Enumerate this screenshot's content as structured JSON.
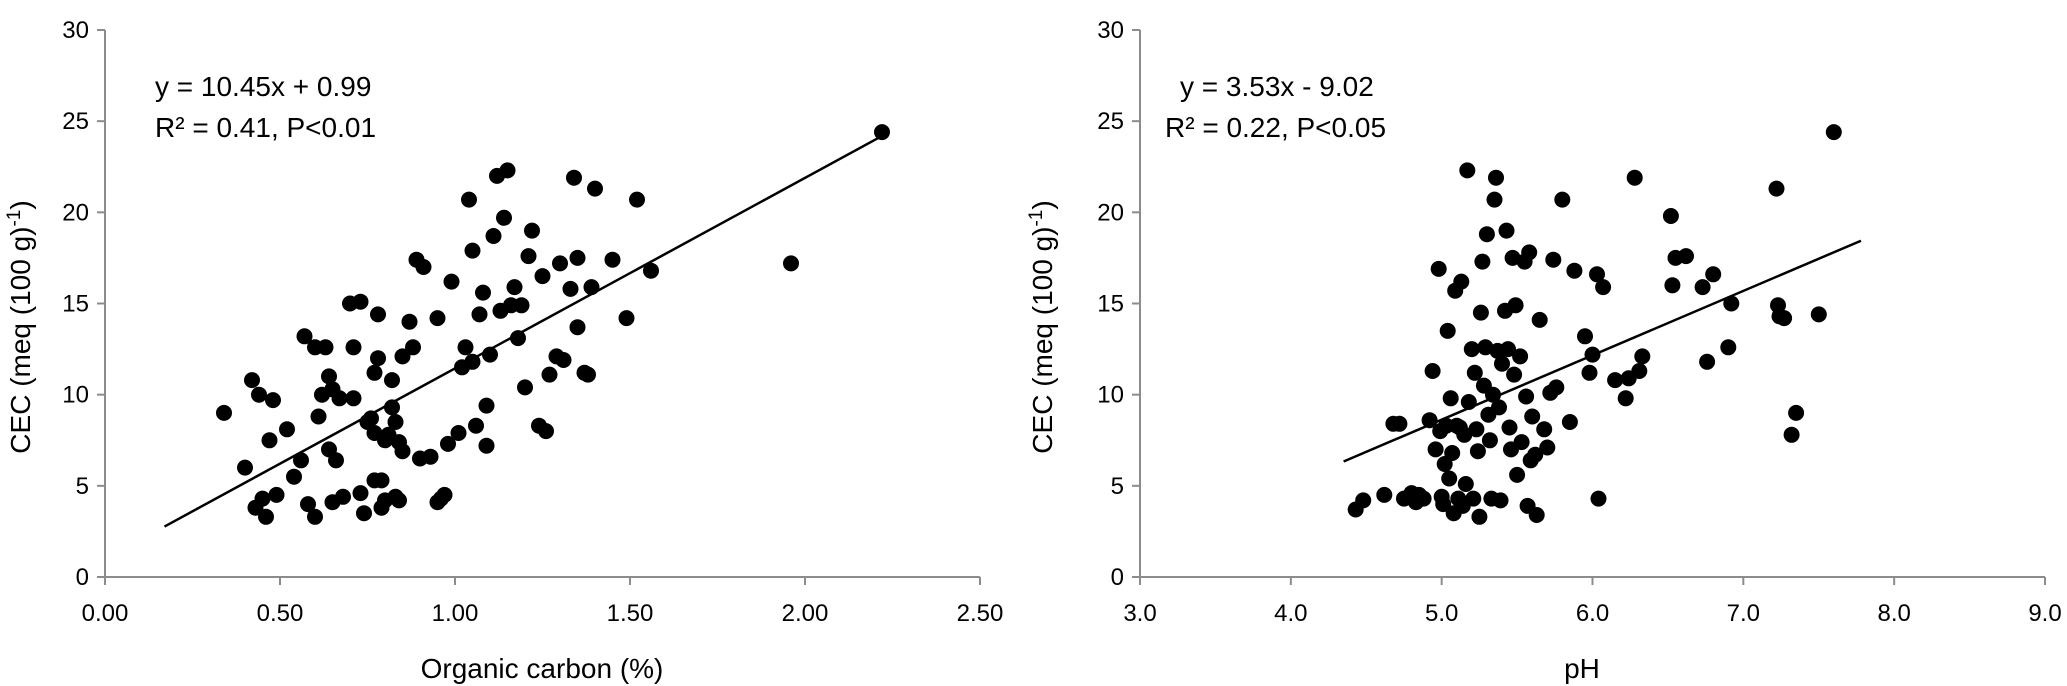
{
  "chart_data": [
    {
      "type": "scatter",
      "xlabel": "Organic carbon (%)",
      "ylabel": "CEC (meq (100 g)",
      "ylabel_sup": "-1",
      "ylabel_tail": ")",
      "xlim": [
        0,
        2.5
      ],
      "ylim": [
        0,
        30
      ],
      "xticks": [
        "0.00",
        "0.50",
        "1.00",
        "1.50",
        "2.00",
        "2.50"
      ],
      "yticks": [
        "0",
        "5",
        "10",
        "15",
        "20",
        "25",
        "30"
      ],
      "grid": false,
      "annotations": [
        "y = 10.45x + 0.99",
        "R² = 0.41, P<0.01"
      ],
      "trendline": {
        "slope": 10.45,
        "intercept": 0.99,
        "x_range": [
          0.17,
          2.23
        ]
      },
      "marker_color": "#000000",
      "points": [
        [
          0.4,
          6.0
        ],
        [
          0.42,
          10.8
        ],
        [
          0.43,
          3.8
        ],
        [
          0.44,
          10.0
        ],
        [
          0.45,
          4.3
        ],
        [
          0.46,
          3.3
        ],
        [
          0.47,
          7.5
        ],
        [
          0.48,
          9.7
        ],
        [
          0.49,
          4.5
        ],
        [
          0.52,
          8.1
        ],
        [
          0.54,
          5.5
        ],
        [
          0.56,
          6.4
        ],
        [
          0.57,
          13.2
        ],
        [
          0.58,
          4.0
        ],
        [
          0.6,
          3.3
        ],
        [
          0.6,
          12.6
        ],
        [
          0.61,
          8.8
        ],
        [
          0.62,
          10.0
        ],
        [
          0.63,
          12.6
        ],
        [
          0.64,
          7.0
        ],
        [
          0.64,
          11.0
        ],
        [
          0.65,
          10.3
        ],
        [
          0.65,
          4.1
        ],
        [
          0.66,
          6.4
        ],
        [
          0.67,
          9.8
        ],
        [
          0.68,
          4.4
        ],
        [
          0.7,
          15.0
        ],
        [
          0.71,
          12.6
        ],
        [
          0.71,
          9.8
        ],
        [
          0.73,
          15.1
        ],
        [
          0.73,
          4.6
        ],
        [
          0.74,
          3.5
        ],
        [
          0.75,
          8.5
        ],
        [
          0.76,
          8.7
        ],
        [
          0.77,
          5.3
        ],
        [
          0.77,
          11.2
        ],
        [
          0.77,
          7.9
        ],
        [
          0.78,
          14.4
        ],
        [
          0.78,
          12.0
        ],
        [
          0.79,
          5.3
        ],
        [
          0.79,
          3.8
        ],
        [
          0.8,
          7.5
        ],
        [
          0.8,
          4.2
        ],
        [
          0.81,
          7.8
        ],
        [
          0.82,
          10.8
        ],
        [
          0.82,
          9.3
        ],
        [
          0.83,
          8.5
        ],
        [
          0.83,
          4.4
        ],
        [
          0.84,
          7.4
        ],
        [
          0.84,
          4.2
        ],
        [
          0.85,
          6.9
        ],
        [
          0.85,
          12.1
        ],
        [
          0.87,
          14.0
        ],
        [
          0.88,
          12.6
        ],
        [
          0.89,
          17.4
        ],
        [
          0.9,
          6.5
        ],
        [
          0.91,
          17.0
        ],
        [
          0.93,
          6.6
        ],
        [
          0.95,
          14.2
        ],
        [
          0.95,
          4.1
        ],
        [
          0.96,
          4.3
        ],
        [
          0.97,
          4.5
        ],
        [
          0.98,
          7.3
        ],
        [
          0.99,
          16.2
        ],
        [
          1.01,
          7.9
        ],
        [
          1.03,
          12.6
        ],
        [
          1.04,
          20.7
        ],
        [
          1.05,
          17.9
        ],
        [
          1.06,
          8.3
        ],
        [
          1.07,
          14.4
        ],
        [
          1.08,
          15.6
        ],
        [
          1.09,
          9.4
        ],
        [
          1.09,
          7.2
        ],
        [
          1.1,
          12.2
        ],
        [
          1.11,
          18.7
        ],
        [
          1.12,
          22.0
        ],
        [
          1.13,
          14.6
        ],
        [
          1.14,
          19.7
        ],
        [
          1.15,
          22.3
        ],
        [
          1.16,
          14.9
        ],
        [
          1.17,
          15.9
        ],
        [
          1.18,
          13.1
        ],
        [
          1.19,
          14.9
        ],
        [
          1.2,
          10.4
        ],
        [
          1.21,
          17.6
        ],
        [
          1.22,
          19.0
        ],
        [
          1.24,
          8.3
        ],
        [
          1.25,
          16.5
        ],
        [
          1.26,
          8.0
        ],
        [
          1.27,
          11.1
        ],
        [
          1.29,
          12.1
        ],
        [
          1.3,
          17.2
        ],
        [
          1.31,
          11.9
        ],
        [
          1.33,
          15.8
        ],
        [
          1.34,
          21.9
        ],
        [
          1.35,
          13.7
        ],
        [
          1.35,
          17.5
        ],
        [
          1.37,
          11.2
        ],
        [
          1.38,
          11.1
        ],
        [
          1.39,
          15.9
        ],
        [
          1.4,
          21.3
        ],
        [
          1.45,
          17.4
        ],
        [
          1.49,
          14.2
        ],
        [
          1.52,
          20.7
        ],
        [
          1.56,
          16.8
        ],
        [
          1.96,
          17.2
        ],
        [
          2.22,
          24.4
        ],
        [
          1.02,
          11.5
        ],
        [
          1.05,
          11.8
        ],
        [
          0.34,
          9.0
        ]
      ]
    },
    {
      "type": "scatter",
      "xlabel": "pH",
      "ylabel": "CEC (meq (100 g)",
      "ylabel_sup": "-1",
      "ylabel_tail": ")",
      "xlim": [
        3.0,
        9.0
      ],
      "ylim": [
        0,
        30
      ],
      "xticks": [
        "3.0",
        "4.0",
        "5.0",
        "6.0",
        "7.0",
        "8.0",
        "9.0"
      ],
      "yticks": [
        "0",
        "5",
        "10",
        "15",
        "20",
        "25",
        "30"
      ],
      "grid": false,
      "annotations": [
        "y = 3.53x - 9.02",
        "R² = 0.22, P<0.05"
      ],
      "trendline": {
        "slope": 3.53,
        "intercept": -9.02,
        "x_range": [
          4.35,
          7.78
        ]
      },
      "marker_color": "#000000",
      "points": [
        [
          4.43,
          3.7
        ],
        [
          4.48,
          4.2
        ],
        [
          4.62,
          4.5
        ],
        [
          4.68,
          8.4
        ],
        [
          4.72,
          8.4
        ],
        [
          4.75,
          4.3
        ],
        [
          4.8,
          4.6
        ],
        [
          4.83,
          4.1
        ],
        [
          4.85,
          4.5
        ],
        [
          4.88,
          4.3
        ],
        [
          4.92,
          8.6
        ],
        [
          4.94,
          11.3
        ],
        [
          4.96,
          7.0
        ],
        [
          4.98,
          16.9
        ],
        [
          4.99,
          8.0
        ],
        [
          5.0,
          4.4
        ],
        [
          5.01,
          4.0
        ],
        [
          5.02,
          6.2
        ],
        [
          5.03,
          8.3
        ],
        [
          5.04,
          13.5
        ],
        [
          5.05,
          5.4
        ],
        [
          5.06,
          9.8
        ],
        [
          5.07,
          6.8
        ],
        [
          5.08,
          3.5
        ],
        [
          5.09,
          15.7
        ],
        [
          5.1,
          8.3
        ],
        [
          5.11,
          4.3
        ],
        [
          5.12,
          8.2
        ],
        [
          5.13,
          16.2
        ],
        [
          5.14,
          3.9
        ],
        [
          5.15,
          7.8
        ],
        [
          5.16,
          5.1
        ],
        [
          5.17,
          22.3
        ],
        [
          5.18,
          9.6
        ],
        [
          5.2,
          12.5
        ],
        [
          5.21,
          4.3
        ],
        [
          5.22,
          11.2
        ],
        [
          5.23,
          8.1
        ],
        [
          5.24,
          6.9
        ],
        [
          5.25,
          3.3
        ],
        [
          5.26,
          14.5
        ],
        [
          5.27,
          17.3
        ],
        [
          5.28,
          10.5
        ],
        [
          5.29,
          12.6
        ],
        [
          5.3,
          18.8
        ],
        [
          5.31,
          8.9
        ],
        [
          5.32,
          7.5
        ],
        [
          5.33,
          4.3
        ],
        [
          5.34,
          10.0
        ],
        [
          5.35,
          20.7
        ],
        [
          5.36,
          21.9
        ],
        [
          5.37,
          12.4
        ],
        [
          5.38,
          9.3
        ],
        [
          5.39,
          4.2
        ],
        [
          5.4,
          11.7
        ],
        [
          5.42,
          14.6
        ],
        [
          5.43,
          19.0
        ],
        [
          5.44,
          12.5
        ],
        [
          5.45,
          8.2
        ],
        [
          5.46,
          7.0
        ],
        [
          5.47,
          17.5
        ],
        [
          5.48,
          11.1
        ],
        [
          5.49,
          14.9
        ],
        [
          5.5,
          5.6
        ],
        [
          5.52,
          12.1
        ],
        [
          5.53,
          7.4
        ],
        [
          5.55,
          17.3
        ],
        [
          5.56,
          9.9
        ],
        [
          5.57,
          3.9
        ],
        [
          5.58,
          17.8
        ],
        [
          5.59,
          6.4
        ],
        [
          5.6,
          8.8
        ],
        [
          5.62,
          6.7
        ],
        [
          5.63,
          3.4
        ],
        [
          5.65,
          14.1
        ],
        [
          5.68,
          8.1
        ],
        [
          5.7,
          7.1
        ],
        [
          5.72,
          10.1
        ],
        [
          5.74,
          17.4
        ],
        [
          5.76,
          10.4
        ],
        [
          5.8,
          20.7
        ],
        [
          5.85,
          8.5
        ],
        [
          5.88,
          16.8
        ],
        [
          5.95,
          13.2
        ],
        [
          5.98,
          11.2
        ],
        [
          6.0,
          12.2
        ],
        [
          6.03,
          16.6
        ],
        [
          6.04,
          4.3
        ],
        [
          6.07,
          15.9
        ],
        [
          6.15,
          10.8
        ],
        [
          6.22,
          9.8
        ],
        [
          6.24,
          10.9
        ],
        [
          6.28,
          21.9
        ],
        [
          6.31,
          11.3
        ],
        [
          6.33,
          12.1
        ],
        [
          6.52,
          19.8
        ],
        [
          6.53,
          16.0
        ],
        [
          6.55,
          17.5
        ],
        [
          6.62,
          17.6
        ],
        [
          6.73,
          15.9
        ],
        [
          6.76,
          11.8
        ],
        [
          6.8,
          16.6
        ],
        [
          6.9,
          12.6
        ],
        [
          6.92,
          15.0
        ],
        [
          7.22,
          21.3
        ],
        [
          7.23,
          14.9
        ],
        [
          7.24,
          14.3
        ],
        [
          7.27,
          14.2
        ],
        [
          7.32,
          7.8
        ],
        [
          7.35,
          9.0
        ],
        [
          7.5,
          14.4
        ],
        [
          7.6,
          24.4
        ]
      ]
    }
  ]
}
